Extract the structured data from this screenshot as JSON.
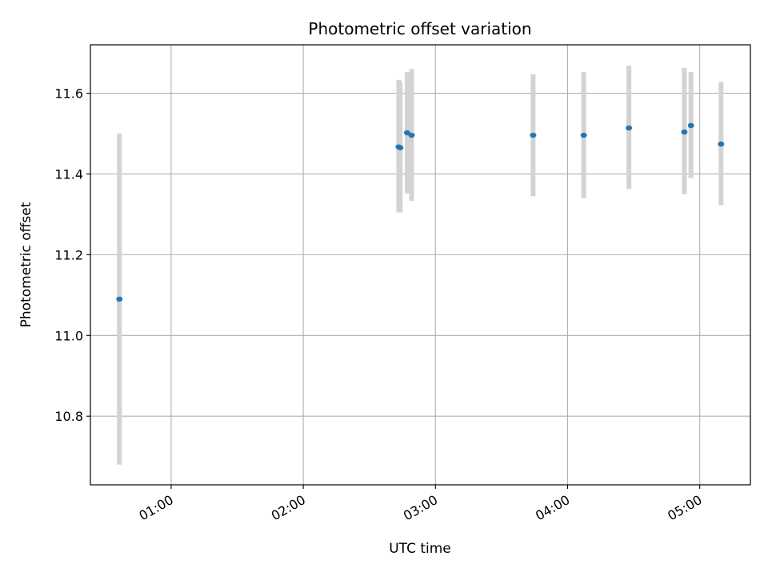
{
  "chart_data": {
    "type": "scatter",
    "title": "Photometric offset variation",
    "xlabel": "UTC time",
    "ylabel": "Photometric offset",
    "x_axis": {
      "kind": "time",
      "xlim": [
        "00:23:20",
        "05:23:00"
      ],
      "ticks": [
        "01:00",
        "02:00",
        "03:00",
        "04:00",
        "05:00"
      ],
      "tick_rotation": "30deg"
    },
    "y_axis": {
      "ylim": [
        10.63,
        11.72
      ],
      "ticks": [
        "10.8",
        "11.0",
        "11.2",
        "11.4",
        "11.6"
      ]
    },
    "grid": true,
    "series": [
      {
        "marker": "point",
        "color": "#1f77b4",
        "error_bar_color": "#d3d3d3",
        "points": [
          {
            "time": "00:36:30",
            "y": 11.09,
            "err_low": 10.68,
            "err_high": 11.5
          },
          {
            "time": "02:43:20",
            "y": 11.467,
            "err_low": 11.305,
            "err_high": 11.633
          },
          {
            "time": "02:44:00",
            "y": 11.465,
            "err_low": 11.305,
            "err_high": 11.628
          },
          {
            "time": "02:47:10",
            "y": 11.502,
            "err_low": 11.352,
            "err_high": 11.652
          },
          {
            "time": "02:49:10",
            "y": 11.496,
            "err_low": 11.333,
            "err_high": 11.66
          },
          {
            "time": "03:44:20",
            "y": 11.496,
            "err_low": 11.345,
            "err_high": 11.647
          },
          {
            "time": "04:07:20",
            "y": 11.496,
            "err_low": 11.34,
            "err_high": 11.652
          },
          {
            "time": "04:27:50",
            "y": 11.514,
            "err_low": 11.363,
            "err_high": 11.668
          },
          {
            "time": "04:53:00",
            "y": 11.504,
            "err_low": 11.35,
            "err_high": 11.663
          },
          {
            "time": "04:56:00",
            "y": 11.52,
            "err_low": 11.39,
            "err_high": 11.652
          },
          {
            "time": "05:09:40",
            "y": 11.474,
            "err_low": 11.323,
            "err_high": 11.628
          }
        ]
      }
    ]
  }
}
